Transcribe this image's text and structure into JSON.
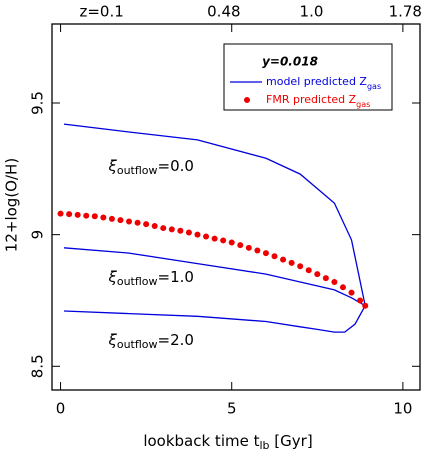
{
  "chart_data": {
    "type": "line",
    "xlabel": {
      "text": "lookback time t",
      "subscript": "lb",
      "suffix": " [Gyr]"
    },
    "ylabel": "12+log(O/H)",
    "xlim": [
      -0.25,
      10.5
    ],
    "ylim": [
      8.41,
      9.8
    ],
    "xticks": [
      0,
      5,
      10
    ],
    "yticks": [
      8.5,
      9,
      9.5
    ],
    "x2ticks": [
      {
        "value": 1.2,
        "label": "z=0.1"
      },
      {
        "value": 4.77,
        "label": "0.48"
      },
      {
        "value": 7.33,
        "label": "1.0"
      },
      {
        "value": 10.07,
        "label": "1.78"
      }
    ],
    "legend": {
      "title": "y=0.018",
      "position": "upper right"
    },
    "series": [
      {
        "name": {
          "text": "model predicted Z",
          "subscript": "gas"
        },
        "color": "#0000dd",
        "style": "line",
        "x": [
          0.1,
          2,
          4,
          6,
          7,
          8,
          8.5,
          8.9
        ],
        "values": [
          9.42,
          9.39,
          9.36,
          9.29,
          9.23,
          9.12,
          8.98,
          8.73
        ]
      },
      {
        "color": "#0000dd",
        "style": "line",
        "x": [
          0.1,
          2,
          4,
          6,
          7,
          8,
          8.5,
          8.9
        ],
        "values": [
          8.95,
          8.93,
          8.89,
          8.85,
          8.82,
          8.79,
          8.76,
          8.73
        ]
      },
      {
        "color": "#0000dd",
        "style": "line",
        "x": [
          0.1,
          2,
          4,
          6,
          7,
          7.5,
          8,
          8.3,
          8.6,
          8.9
        ],
        "values": [
          8.71,
          8.7,
          8.69,
          8.67,
          8.65,
          8.64,
          8.63,
          8.63,
          8.66,
          8.73
        ]
      },
      {
        "name": {
          "text": "FMR predicted Z",
          "subscript": "gas"
        },
        "color": "#ee0000",
        "style": "dots",
        "x": [
          0,
          0.25,
          0.5,
          0.75,
          1,
          1.25,
          1.5,
          1.75,
          2,
          2.25,
          2.5,
          2.75,
          3,
          3.25,
          3.5,
          3.75,
          4,
          4.25,
          4.5,
          4.75,
          5,
          5.25,
          5.5,
          5.75,
          6,
          6.25,
          6.5,
          6.75,
          7,
          7.25,
          7.5,
          7.75,
          8,
          8.25,
          8.5,
          8.75,
          8.9
        ],
        "values": [
          9.08,
          9.078,
          9.075,
          9.072,
          9.07,
          9.065,
          9.06,
          9.055,
          9.05,
          9.045,
          9.04,
          9.033,
          9.025,
          9.02,
          9.015,
          9.008,
          9.0,
          8.993,
          8.985,
          8.978,
          8.97,
          8.96,
          8.95,
          8.94,
          8.93,
          8.918,
          8.905,
          8.893,
          8.88,
          8.865,
          8.85,
          8.835,
          8.82,
          8.8,
          8.78,
          8.75,
          8.73
        ]
      }
    ],
    "annotations": [
      {
        "symbol": "ξ",
        "subscript": "outflow",
        "text": "=0.0",
        "x": 1.4,
        "y": 9.26
      },
      {
        "symbol": "ξ",
        "subscript": "outflow",
        "text": "=1.0",
        "x": 1.4,
        "y": 8.84
      },
      {
        "symbol": "ξ",
        "subscript": "outflow",
        "text": "=2.0",
        "x": 1.4,
        "y": 8.6
      }
    ]
  }
}
